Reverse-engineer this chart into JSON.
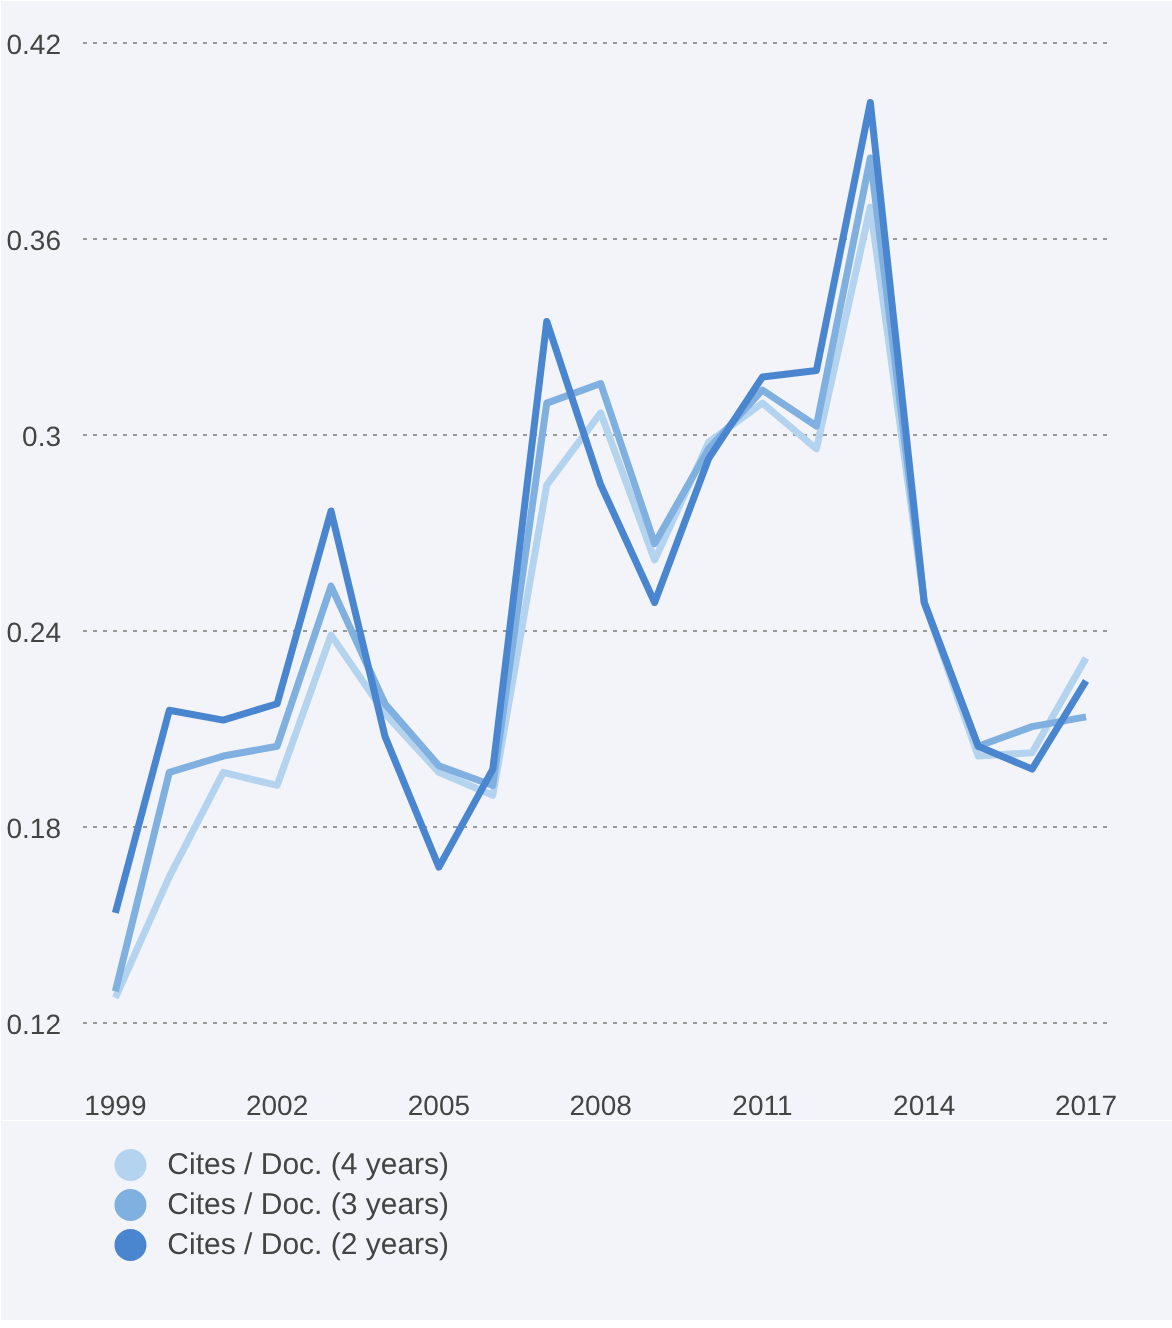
{
  "chart_data": {
    "type": "line",
    "x": [
      1999,
      2000,
      2001,
      2002,
      2003,
      2004,
      2005,
      2006,
      2007,
      2008,
      2009,
      2010,
      2011,
      2012,
      2013,
      2014,
      2015,
      2016,
      2017
    ],
    "series": [
      {
        "name": "Cites / Doc. (4 years)",
        "color": "#b3d3ee",
        "values": [
          0.128,
          0.165,
          0.197,
          0.193,
          0.239,
          0.215,
          0.197,
          0.19,
          0.285,
          0.307,
          0.262,
          0.298,
          0.31,
          0.296,
          0.37,
          0.249,
          0.202,
          0.203,
          0.232
        ]
      },
      {
        "name": "Cites / Doc. (3 years)",
        "color": "#7fb0e0",
        "values": [
          0.13,
          0.197,
          0.202,
          0.205,
          0.254,
          0.218,
          0.199,
          0.193,
          0.31,
          0.316,
          0.267,
          0.296,
          0.314,
          0.303,
          0.385,
          0.249,
          0.205,
          0.211,
          0.214
        ]
      },
      {
        "name": "Cites / Doc. (2 years)",
        "color": "#4a86cf",
        "values": [
          0.154,
          0.216,
          0.213,
          0.218,
          0.277,
          0.208,
          0.168,
          0.198,
          0.335,
          0.285,
          0.249,
          0.293,
          0.318,
          0.32,
          0.402,
          0.249,
          0.205,
          0.198,
          0.225
        ]
      }
    ],
    "xlim": [
      1998.4,
      2017.5
    ],
    "ylim": [
      0.105,
      0.43
    ],
    "xticks": [
      1999,
      2002,
      2005,
      2008,
      2011,
      2014,
      2017
    ],
    "yticks": [
      0.12,
      0.18,
      0.24,
      0.3,
      0.36,
      0.42
    ],
    "grid": "y",
    "legend": "bottom",
    "marker": "none",
    "line_style": "solid"
  }
}
